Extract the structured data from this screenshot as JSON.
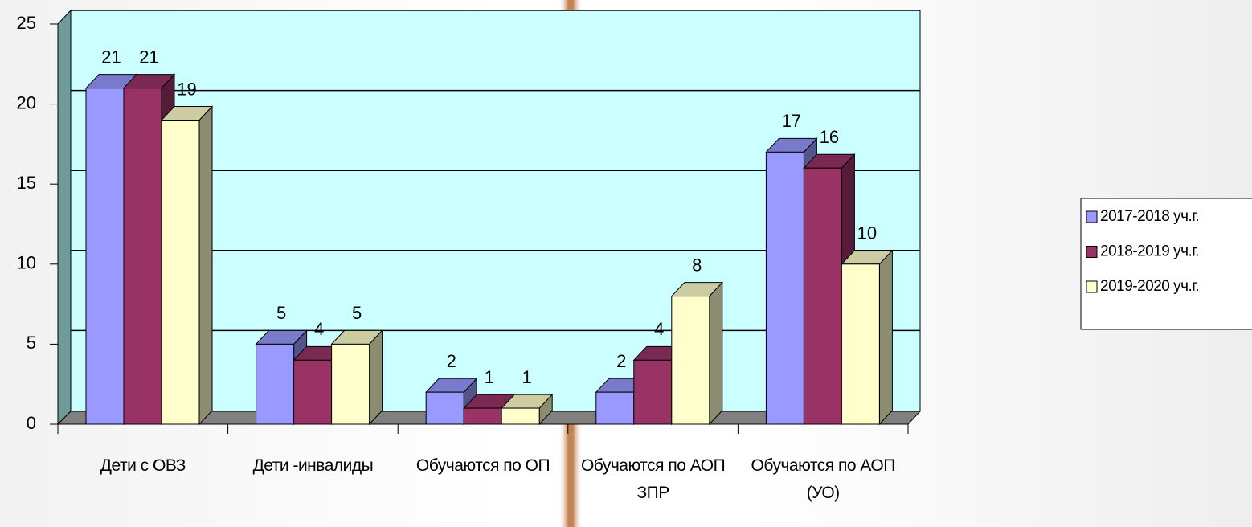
{
  "chart_data": {
    "type": "bar3d",
    "categories": [
      "Дети с ОВЗ",
      "Дети -инвалиды",
      "Обучаются по ОП",
      "Обучаются по АОП ЗПР",
      "Обучаются по АОП (УО)"
    ],
    "series": [
      {
        "name": "2017-2018 уч.г.",
        "color": "#9999ff",
        "values": [
          21,
          5,
          2,
          2,
          17
        ]
      },
      {
        "name": "2018-2019 уч.г.",
        "color": "#993366",
        "values": [
          21,
          4,
          1,
          4,
          16
        ]
      },
      {
        "name": "2019-2020 уч.г.",
        "color": "#ffffcc",
        "values": [
          19,
          5,
          1,
          8,
          10
        ]
      }
    ],
    "ylim": [
      0,
      25
    ],
    "yticks": [
      0,
      5,
      10,
      15,
      20,
      25
    ],
    "grid": true,
    "legend": "right"
  }
}
